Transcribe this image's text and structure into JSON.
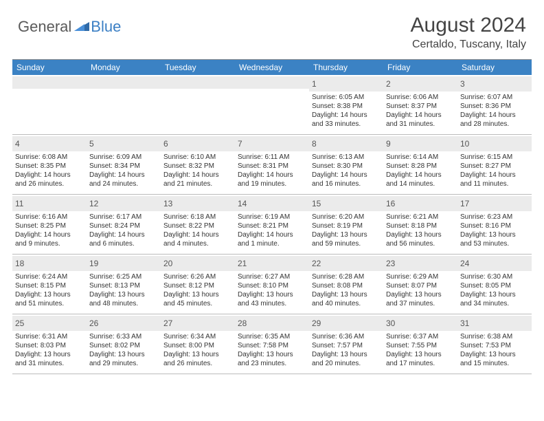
{
  "logo": {
    "text1": "General",
    "text2": "Blue"
  },
  "title": "August 2024",
  "location": "Certaldo, Tuscany, Italy",
  "header_bg": "#3b82c4",
  "daynum_bg": "#ebebeb",
  "days_of_week": [
    "Sunday",
    "Monday",
    "Tuesday",
    "Wednesday",
    "Thursday",
    "Friday",
    "Saturday"
  ],
  "weeks": [
    [
      {
        "n": "",
        "sr": "",
        "ss": "",
        "dl": ""
      },
      {
        "n": "",
        "sr": "",
        "ss": "",
        "dl": ""
      },
      {
        "n": "",
        "sr": "",
        "ss": "",
        "dl": ""
      },
      {
        "n": "",
        "sr": "",
        "ss": "",
        "dl": ""
      },
      {
        "n": "1",
        "sr": "Sunrise: 6:05 AM",
        "ss": "Sunset: 8:38 PM",
        "dl": "Daylight: 14 hours and 33 minutes."
      },
      {
        "n": "2",
        "sr": "Sunrise: 6:06 AM",
        "ss": "Sunset: 8:37 PM",
        "dl": "Daylight: 14 hours and 31 minutes."
      },
      {
        "n": "3",
        "sr": "Sunrise: 6:07 AM",
        "ss": "Sunset: 8:36 PM",
        "dl": "Daylight: 14 hours and 28 minutes."
      }
    ],
    [
      {
        "n": "4",
        "sr": "Sunrise: 6:08 AM",
        "ss": "Sunset: 8:35 PM",
        "dl": "Daylight: 14 hours and 26 minutes."
      },
      {
        "n": "5",
        "sr": "Sunrise: 6:09 AM",
        "ss": "Sunset: 8:34 PM",
        "dl": "Daylight: 14 hours and 24 minutes."
      },
      {
        "n": "6",
        "sr": "Sunrise: 6:10 AM",
        "ss": "Sunset: 8:32 PM",
        "dl": "Daylight: 14 hours and 21 minutes."
      },
      {
        "n": "7",
        "sr": "Sunrise: 6:11 AM",
        "ss": "Sunset: 8:31 PM",
        "dl": "Daylight: 14 hours and 19 minutes."
      },
      {
        "n": "8",
        "sr": "Sunrise: 6:13 AM",
        "ss": "Sunset: 8:30 PM",
        "dl": "Daylight: 14 hours and 16 minutes."
      },
      {
        "n": "9",
        "sr": "Sunrise: 6:14 AM",
        "ss": "Sunset: 8:28 PM",
        "dl": "Daylight: 14 hours and 14 minutes."
      },
      {
        "n": "10",
        "sr": "Sunrise: 6:15 AM",
        "ss": "Sunset: 8:27 PM",
        "dl": "Daylight: 14 hours and 11 minutes."
      }
    ],
    [
      {
        "n": "11",
        "sr": "Sunrise: 6:16 AM",
        "ss": "Sunset: 8:25 PM",
        "dl": "Daylight: 14 hours and 9 minutes."
      },
      {
        "n": "12",
        "sr": "Sunrise: 6:17 AM",
        "ss": "Sunset: 8:24 PM",
        "dl": "Daylight: 14 hours and 6 minutes."
      },
      {
        "n": "13",
        "sr": "Sunrise: 6:18 AM",
        "ss": "Sunset: 8:22 PM",
        "dl": "Daylight: 14 hours and 4 minutes."
      },
      {
        "n": "14",
        "sr": "Sunrise: 6:19 AM",
        "ss": "Sunset: 8:21 PM",
        "dl": "Daylight: 14 hours and 1 minute."
      },
      {
        "n": "15",
        "sr": "Sunrise: 6:20 AM",
        "ss": "Sunset: 8:19 PM",
        "dl": "Daylight: 13 hours and 59 minutes."
      },
      {
        "n": "16",
        "sr": "Sunrise: 6:21 AM",
        "ss": "Sunset: 8:18 PM",
        "dl": "Daylight: 13 hours and 56 minutes."
      },
      {
        "n": "17",
        "sr": "Sunrise: 6:23 AM",
        "ss": "Sunset: 8:16 PM",
        "dl": "Daylight: 13 hours and 53 minutes."
      }
    ],
    [
      {
        "n": "18",
        "sr": "Sunrise: 6:24 AM",
        "ss": "Sunset: 8:15 PM",
        "dl": "Daylight: 13 hours and 51 minutes."
      },
      {
        "n": "19",
        "sr": "Sunrise: 6:25 AM",
        "ss": "Sunset: 8:13 PM",
        "dl": "Daylight: 13 hours and 48 minutes."
      },
      {
        "n": "20",
        "sr": "Sunrise: 6:26 AM",
        "ss": "Sunset: 8:12 PM",
        "dl": "Daylight: 13 hours and 45 minutes."
      },
      {
        "n": "21",
        "sr": "Sunrise: 6:27 AM",
        "ss": "Sunset: 8:10 PM",
        "dl": "Daylight: 13 hours and 43 minutes."
      },
      {
        "n": "22",
        "sr": "Sunrise: 6:28 AM",
        "ss": "Sunset: 8:08 PM",
        "dl": "Daylight: 13 hours and 40 minutes."
      },
      {
        "n": "23",
        "sr": "Sunrise: 6:29 AM",
        "ss": "Sunset: 8:07 PM",
        "dl": "Daylight: 13 hours and 37 minutes."
      },
      {
        "n": "24",
        "sr": "Sunrise: 6:30 AM",
        "ss": "Sunset: 8:05 PM",
        "dl": "Daylight: 13 hours and 34 minutes."
      }
    ],
    [
      {
        "n": "25",
        "sr": "Sunrise: 6:31 AM",
        "ss": "Sunset: 8:03 PM",
        "dl": "Daylight: 13 hours and 31 minutes."
      },
      {
        "n": "26",
        "sr": "Sunrise: 6:33 AM",
        "ss": "Sunset: 8:02 PM",
        "dl": "Daylight: 13 hours and 29 minutes."
      },
      {
        "n": "27",
        "sr": "Sunrise: 6:34 AM",
        "ss": "Sunset: 8:00 PM",
        "dl": "Daylight: 13 hours and 26 minutes."
      },
      {
        "n": "28",
        "sr": "Sunrise: 6:35 AM",
        "ss": "Sunset: 7:58 PM",
        "dl": "Daylight: 13 hours and 23 minutes."
      },
      {
        "n": "29",
        "sr": "Sunrise: 6:36 AM",
        "ss": "Sunset: 7:57 PM",
        "dl": "Daylight: 13 hours and 20 minutes."
      },
      {
        "n": "30",
        "sr": "Sunrise: 6:37 AM",
        "ss": "Sunset: 7:55 PM",
        "dl": "Daylight: 13 hours and 17 minutes."
      },
      {
        "n": "31",
        "sr": "Sunrise: 6:38 AM",
        "ss": "Sunset: 7:53 PM",
        "dl": "Daylight: 13 hours and 15 minutes."
      }
    ]
  ]
}
